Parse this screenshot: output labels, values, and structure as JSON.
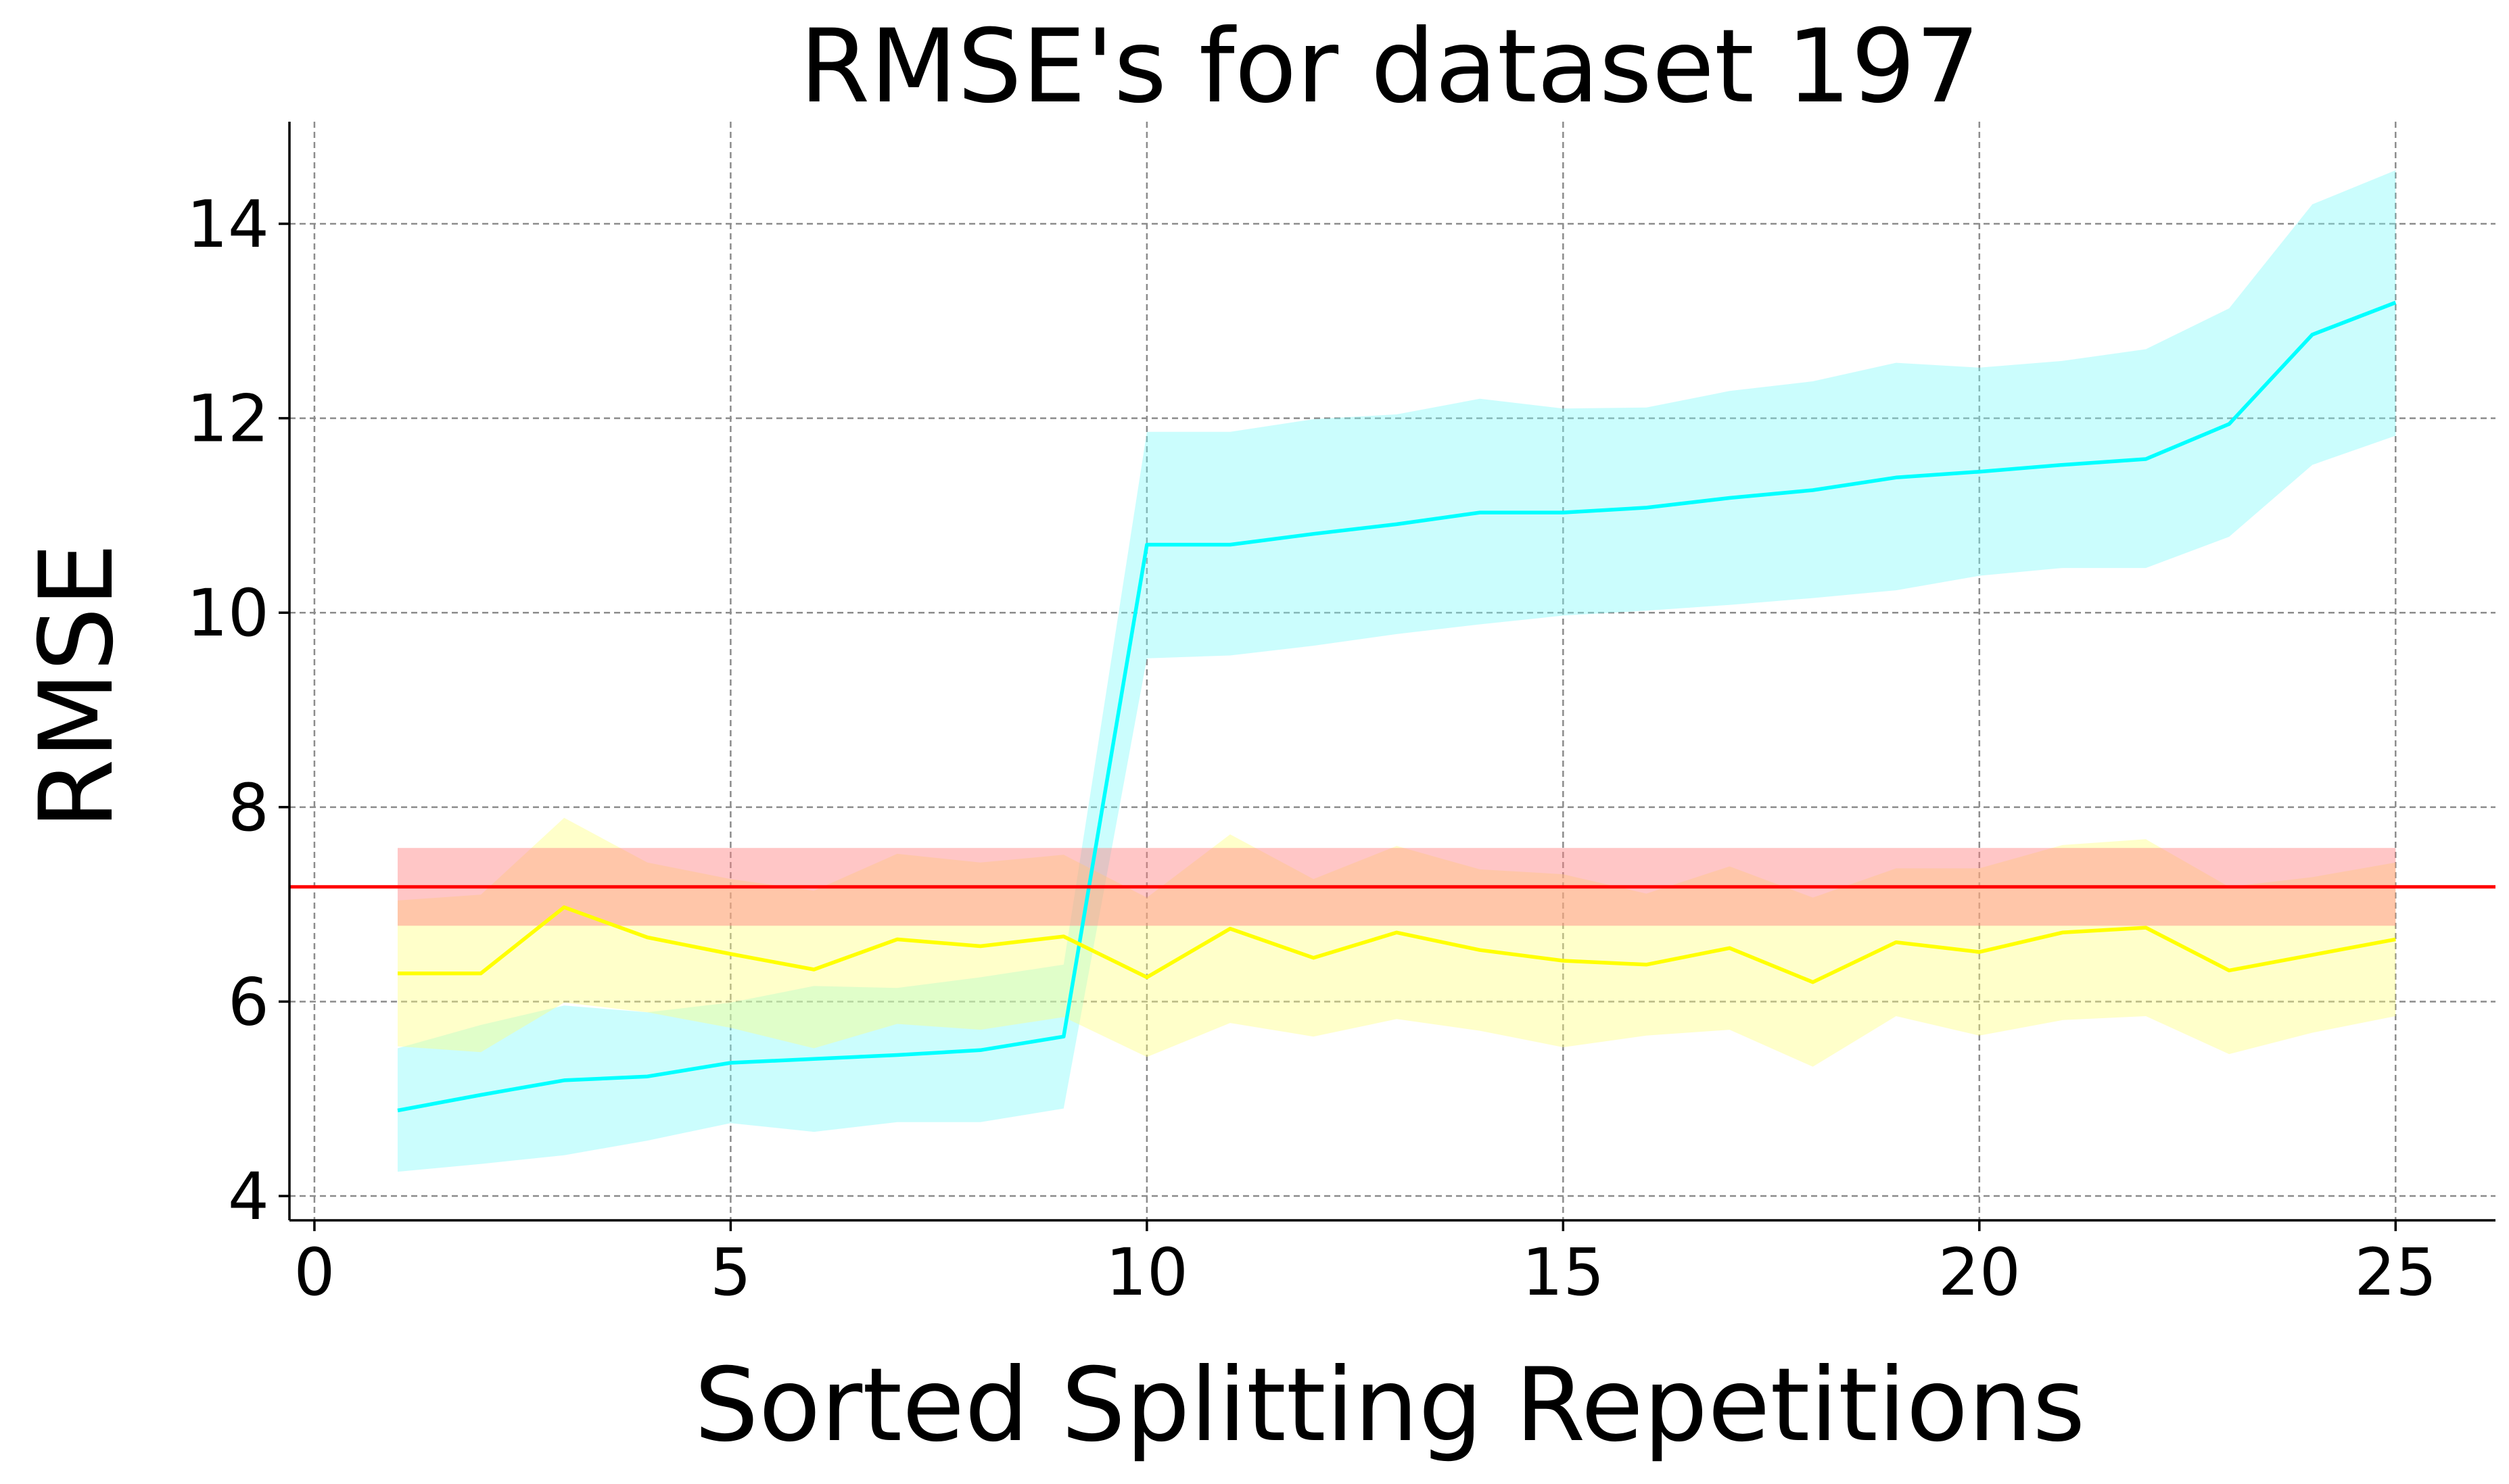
{
  "chart_data": {
    "type": "line",
    "title": "RMSE's for dataset 197",
    "xlabel": "Sorted Splitting Repetitions",
    "ylabel": "RMSE",
    "xlim": [
      -0.3,
      26.2
    ],
    "ylim": [
      3.75,
      15.05
    ],
    "xticks": [
      0,
      5,
      10,
      15,
      20,
      25
    ],
    "yticks": [
      4,
      6,
      8,
      10,
      12,
      14
    ],
    "grid": true,
    "x": [
      1,
      2,
      3,
      4,
      5,
      6,
      7,
      8,
      9,
      10,
      11,
      12,
      13,
      14,
      15,
      16,
      17,
      18,
      19,
      20,
      21,
      22,
      23,
      24,
      25
    ],
    "series": [
      {
        "color": "#00ffff",
        "band_color": "#7df9f9",
        "values": [
          4.88,
          5.04,
          5.19,
          5.23,
          5.37,
          5.41,
          5.45,
          5.5,
          5.64,
          10.7,
          10.7,
          10.81,
          10.91,
          11.03,
          11.03,
          11.08,
          11.18,
          11.26,
          11.39,
          11.45,
          11.52,
          11.58,
          11.94,
          12.86,
          13.19
        ],
        "lower": [
          4.25,
          4.33,
          4.42,
          4.57,
          4.75,
          4.66,
          4.76,
          4.76,
          4.9,
          9.53,
          9.56,
          9.66,
          9.78,
          9.88,
          9.97,
          10.02,
          10.08,
          10.15,
          10.23,
          10.38,
          10.46,
          10.46,
          10.78,
          11.52,
          11.82
        ],
        "upper": [
          5.52,
          5.76,
          5.96,
          5.89,
          5.99,
          6.16,
          6.14,
          6.25,
          6.38,
          11.86,
          11.86,
          11.99,
          12.04,
          12.2,
          12.1,
          12.11,
          12.28,
          12.38,
          12.57,
          12.52,
          12.59,
          12.71,
          13.13,
          14.2,
          14.55
        ]
      },
      {
        "color": "#ffff00",
        "band_color": "#ffff7a",
        "values": [
          6.29,
          6.29,
          6.97,
          6.66,
          6.49,
          6.33,
          6.64,
          6.57,
          6.67,
          6.25,
          6.75,
          6.45,
          6.71,
          6.53,
          6.42,
          6.38,
          6.55,
          6.2,
          6.61,
          6.51,
          6.71,
          6.76,
          6.32,
          6.48,
          6.64
        ],
        "lower": [
          5.54,
          5.48,
          5.99,
          5.89,
          5.73,
          5.52,
          5.77,
          5.71,
          5.84,
          5.43,
          5.78,
          5.64,
          5.82,
          5.7,
          5.53,
          5.65,
          5.71,
          5.33,
          5.85,
          5.65,
          5.81,
          5.85,
          5.46,
          5.68,
          5.85
        ],
        "upper": [
          7.04,
          7.1,
          7.89,
          7.43,
          7.26,
          7.14,
          7.52,
          7.43,
          7.51,
          7.07,
          7.72,
          7.26,
          7.6,
          7.36,
          7.31,
          7.11,
          7.39,
          7.07,
          7.37,
          7.37,
          7.61,
          7.67,
          7.18,
          7.28,
          7.43
        ]
      }
    ],
    "reference": {
      "color": "#ff0000",
      "band_color": "#ff8080",
      "value": 7.18,
      "band": [
        6.78,
        7.58
      ],
      "x_range": [
        1,
        25
      ]
    }
  }
}
